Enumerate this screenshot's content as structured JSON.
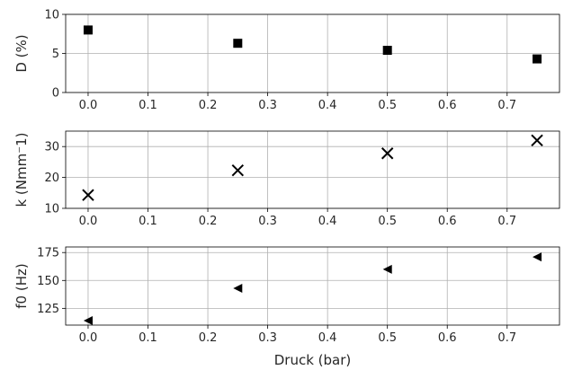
{
  "chart_data": [
    {
      "type": "scatter",
      "title": "",
      "xlabel": "",
      "ylabel": "D (%)",
      "xlim": [
        -0.0375,
        0.7875
      ],
      "ylim": [
        0,
        10
      ],
      "xticks": [
        "0.0",
        "0.1",
        "0.2",
        "0.3",
        "0.4",
        "0.5",
        "0.6",
        "0.7"
      ],
      "xtick_values": [
        0,
        0.1,
        0.2,
        0.3,
        0.4,
        0.5,
        0.6,
        0.7
      ],
      "yticks": [
        "0",
        "5",
        "10"
      ],
      "ytick_values": [
        0,
        5,
        10
      ],
      "grid": true,
      "marker": "square",
      "series": [
        {
          "x": [
            0.0,
            0.25,
            0.5,
            0.75
          ],
          "y": [
            8.0,
            6.3,
            5.4,
            4.3
          ]
        }
      ]
    },
    {
      "type": "scatter",
      "title": "",
      "xlabel": "",
      "ylabel": "k (Nmm⁻1)",
      "xlim": [
        -0.0375,
        0.7875
      ],
      "ylim": [
        10,
        35
      ],
      "xticks": [
        "0.0",
        "0.1",
        "0.2",
        "0.3",
        "0.4",
        "0.5",
        "0.6",
        "0.7"
      ],
      "xtick_values": [
        0,
        0.1,
        0.2,
        0.3,
        0.4,
        0.5,
        0.6,
        0.7
      ],
      "yticks": [
        "10",
        "20",
        "30"
      ],
      "ytick_values": [
        10,
        20,
        30
      ],
      "grid": true,
      "marker": "x",
      "series": [
        {
          "x": [
            0.0,
            0.25,
            0.5,
            0.75
          ],
          "y": [
            14.3,
            22.3,
            27.8,
            32.0
          ]
        }
      ]
    },
    {
      "type": "scatter",
      "title": "",
      "xlabel": "Druck (bar)",
      "ylabel": "f0 (Hz)",
      "xlim": [
        -0.0375,
        0.7875
      ],
      "ylim": [
        110,
        180
      ],
      "xticks": [
        "0.0",
        "0.1",
        "0.2",
        "0.3",
        "0.4",
        "0.5",
        "0.6",
        "0.7"
      ],
      "xtick_values": [
        0,
        0.1,
        0.2,
        0.3,
        0.4,
        0.5,
        0.6,
        0.7
      ],
      "yticks": [
        "125",
        "150",
        "175"
      ],
      "ytick_values": [
        125,
        150,
        175
      ],
      "grid": true,
      "marker": "triangle-left",
      "series": [
        {
          "x": [
            0.0,
            0.25,
            0.5,
            0.75
          ],
          "y": [
            114,
            143,
            160,
            171
          ]
        }
      ]
    }
  ],
  "colors": {
    "marker": "#000000",
    "grid": "#b0b0b0"
  }
}
